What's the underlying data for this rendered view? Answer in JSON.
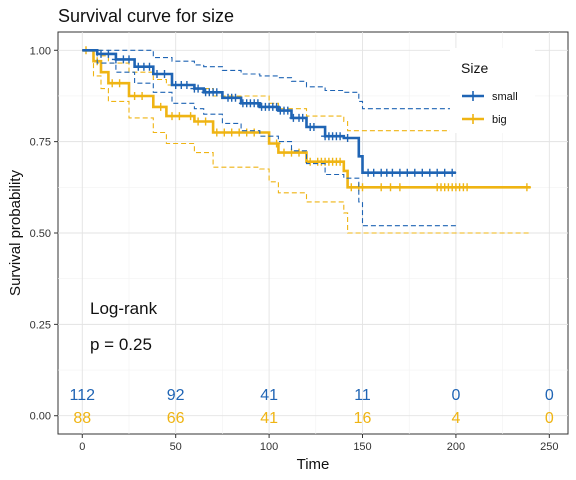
{
  "chart_data": {
    "type": "line",
    "title": "Survival curve for size",
    "xlabel": "Time",
    "ylabel": "Survival probability",
    "xlim": [
      -13,
      260
    ],
    "ylim": [
      -0.05,
      1.05
    ],
    "x_ticks": [
      0,
      50,
      100,
      150,
      200,
      250
    ],
    "y_ticks": [
      0.0,
      0.25,
      0.5,
      0.75,
      1.0
    ],
    "y_tick_labels": [
      "0.00",
      "0.25",
      "0.50",
      "0.75",
      "1.00"
    ],
    "grid": true,
    "legend": {
      "title": "Size",
      "position": "right"
    },
    "annotations": [
      "Log-rank",
      "p = 0.25"
    ],
    "series": [
      {
        "name": "small",
        "color": "#1f64b4",
        "steps": [
          [
            0,
            1.0
          ],
          [
            8,
            0.99
          ],
          [
            18,
            0.975
          ],
          [
            28,
            0.955
          ],
          [
            38,
            0.935
          ],
          [
            48,
            0.905
          ],
          [
            60,
            0.895
          ],
          [
            65,
            0.885
          ],
          [
            75,
            0.87
          ],
          [
            85,
            0.855
          ],
          [
            95,
            0.845
          ],
          [
            105,
            0.835
          ],
          [
            112,
            0.815
          ],
          [
            120,
            0.79
          ],
          [
            130,
            0.765
          ],
          [
            140,
            0.76
          ],
          [
            148,
            0.71
          ],
          [
            150,
            0.665
          ],
          [
            200,
            0.665
          ]
        ],
        "upper": [
          [
            0,
            1.0
          ],
          [
            8,
            1.0
          ],
          [
            18,
            1.0
          ],
          [
            28,
            1.0
          ],
          [
            38,
            0.98
          ],
          [
            48,
            0.97
          ],
          [
            60,
            0.96
          ],
          [
            65,
            0.955
          ],
          [
            75,
            0.945
          ],
          [
            85,
            0.935
          ],
          [
            95,
            0.93
          ],
          [
            105,
            0.925
          ],
          [
            112,
            0.915
          ],
          [
            120,
            0.9
          ],
          [
            130,
            0.89
          ],
          [
            140,
            0.885
          ],
          [
            148,
            0.86
          ],
          [
            150,
            0.84
          ],
          [
            200,
            0.84
          ]
        ],
        "lower": [
          [
            0,
            1.0
          ],
          [
            8,
            0.965
          ],
          [
            18,
            0.94
          ],
          [
            28,
            0.91
          ],
          [
            38,
            0.885
          ],
          [
            48,
            0.855
          ],
          [
            60,
            0.84
          ],
          [
            65,
            0.825
          ],
          [
            75,
            0.8
          ],
          [
            85,
            0.78
          ],
          [
            95,
            0.765
          ],
          [
            105,
            0.75
          ],
          [
            112,
            0.725
          ],
          [
            120,
            0.69
          ],
          [
            130,
            0.66
          ],
          [
            140,
            0.65
          ],
          [
            148,
            0.585
          ],
          [
            150,
            0.52
          ],
          [
            200,
            0.52
          ]
        ],
        "censored": [
          10,
          14,
          18,
          22,
          25,
          30,
          33,
          36,
          40,
          44,
          50,
          53,
          56,
          60,
          62,
          66,
          68,
          70,
          72,
          78,
          80,
          82,
          86,
          88,
          90,
          92,
          94,
          96,
          98,
          100,
          102,
          104,
          106,
          108,
          110,
          113,
          116,
          118,
          122,
          124,
          130,
          132,
          134,
          136,
          138,
          142,
          153,
          156,
          160,
          163,
          166,
          170,
          174,
          178,
          182,
          186,
          190,
          194,
          198
        ],
        "at_risk": [
          112,
          92,
          41,
          11,
          0,
          0
        ]
      },
      {
        "name": "big",
        "color": "#efb413",
        "steps": [
          [
            0,
            1.0
          ],
          [
            6,
            0.97
          ],
          [
            10,
            0.94
          ],
          [
            14,
            0.91
          ],
          [
            25,
            0.875
          ],
          [
            38,
            0.845
          ],
          [
            45,
            0.82
          ],
          [
            60,
            0.805
          ],
          [
            70,
            0.775
          ],
          [
            95,
            0.775
          ],
          [
            100,
            0.745
          ],
          [
            105,
            0.72
          ],
          [
            120,
            0.695
          ],
          [
            140,
            0.67
          ],
          [
            142,
            0.625
          ],
          [
            240,
            0.625
          ]
        ],
        "upper": [
          [
            0,
            1.0
          ],
          [
            6,
            1.0
          ],
          [
            10,
            0.985
          ],
          [
            14,
            0.965
          ],
          [
            25,
            0.94
          ],
          [
            38,
            0.92
          ],
          [
            45,
            0.905
          ],
          [
            60,
            0.895
          ],
          [
            70,
            0.875
          ],
          [
            95,
            0.875
          ],
          [
            100,
            0.855
          ],
          [
            105,
            0.84
          ],
          [
            120,
            0.82
          ],
          [
            140,
            0.805
          ],
          [
            142,
            0.78
          ],
          [
            240,
            0.78
          ]
        ],
        "lower": [
          [
            0,
            1.0
          ],
          [
            6,
            0.93
          ],
          [
            10,
            0.895
          ],
          [
            14,
            0.86
          ],
          [
            25,
            0.815
          ],
          [
            38,
            0.775
          ],
          [
            45,
            0.745
          ],
          [
            60,
            0.72
          ],
          [
            70,
            0.68
          ],
          [
            95,
            0.675
          ],
          [
            100,
            0.64
          ],
          [
            105,
            0.61
          ],
          [
            120,
            0.585
          ],
          [
            140,
            0.555
          ],
          [
            142,
            0.5
          ],
          [
            240,
            0.5
          ]
        ],
        "censored": [
          2,
          8,
          16,
          20,
          28,
          32,
          42,
          48,
          52,
          58,
          62,
          66,
          72,
          76,
          80,
          84,
          88,
          92,
          104,
          108,
          112,
          116,
          122,
          126,
          128,
          130,
          132,
          134,
          136,
          138,
          144,
          148,
          150,
          160,
          165,
          170,
          190,
          192,
          194,
          196,
          198,
          200,
          202,
          204,
          206,
          238
        ],
        "at_risk": [
          88,
          66,
          41,
          16,
          4,
          0
        ]
      }
    ],
    "risk_table_times": [
      0,
      50,
      100,
      150,
      200,
      250
    ]
  }
}
